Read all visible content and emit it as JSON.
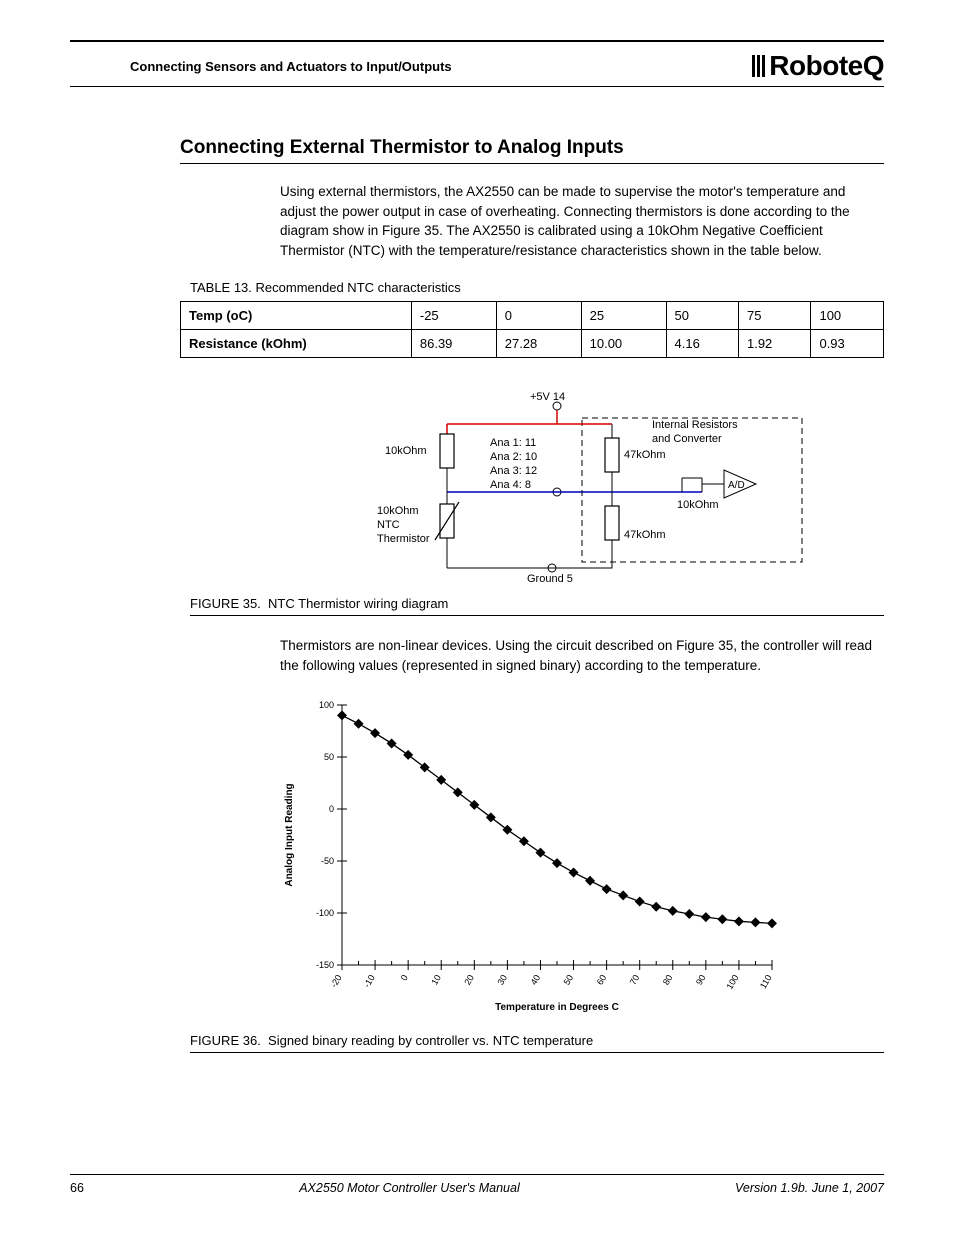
{
  "header": {
    "left_text": "Connecting Sensors and Actuators to Input/Outputs",
    "logo_text": "RoboteQ"
  },
  "section": {
    "title": "Connecting External Thermistor to Analog Inputs",
    "paragraph1": "Using external thermistors, the AX2550 can be made to supervise the motor's temperature and adjust the power output in case of overheating. Connecting thermistors is done according to the diagram show in Figure 35. The AX2550 is calibrated using a 10kOhm Negative Coefficient Thermistor (NTC) with the temperature/resistance characteristics shown in the table below.",
    "paragraph2": "Thermistors are non-linear devices. Using the circuit described on Figure 35, the controller will read the following values (represented in signed binary) according to the temperature."
  },
  "table13": {
    "caption_label": "TABLE 13.",
    "caption_text": "Recommended NTC characteristics",
    "row1_header": "Temp (oC)",
    "row1": [
      "-25",
      "0",
      "25",
      "50",
      "75",
      "100"
    ],
    "row2_header": "Resistance (kOhm)",
    "row2": [
      "86.39",
      "27.28",
      "10.00",
      "4.16",
      "1.92",
      "0.93"
    ]
  },
  "figure35": {
    "caption_label": "FIGURE 35.",
    "caption_text": "NTC Thermistor wiring diagram",
    "labels": {
      "top_supply": "+5V  14",
      "ana1": "Ana 1:  11",
      "ana2": "Ana 2:  10",
      "ana3": "Ana 3:  12",
      "ana4": "Ana 4:    8",
      "ground": "Ground  5",
      "r_top": "10kOhm",
      "thermistor1": "10kOhm",
      "thermistor2": "NTC",
      "thermistor3": "Thermistor",
      "r47a": "47kOhm",
      "r47b": "47kOhm",
      "r10div": "10kOhm",
      "ad": "A/D",
      "internal1": "Internal Resistors",
      "internal2": "and Converter"
    },
    "colors": {
      "supply_wire": "#d40000",
      "signal_wire": "#0000c0",
      "ground_wire": "#000000",
      "resistor": "#000000",
      "text": "#000000"
    }
  },
  "figure36": {
    "caption_label": "FIGURE 36.",
    "caption_text": "Signed binary reading by controller vs. NTC temperature",
    "xlabel": "Temperature in Degrees C",
    "ylabel": "Analog Input Reading",
    "x_ticks": [
      "-20",
      "-10",
      "0",
      "10",
      "20",
      "30",
      "40",
      "50",
      "60",
      "70",
      "80",
      "90",
      "100",
      "110"
    ],
    "y_ticks": [
      "-150",
      "-100",
      "-50",
      "0",
      "50",
      "100"
    ],
    "ylim": [
      -150,
      100
    ],
    "xlim": [
      -20,
      110
    ],
    "x_tick_vals": [
      -20,
      -10,
      0,
      10,
      20,
      30,
      40,
      50,
      60,
      70,
      80,
      90,
      100,
      110
    ],
    "y_tick_vals": [
      -150,
      -100,
      -50,
      0,
      50,
      100
    ],
    "series": {
      "color": "#000000",
      "marker": "diamond",
      "marker_size": 5,
      "points": [
        [
          -20,
          90
        ],
        [
          -15,
          82
        ],
        [
          -10,
          73
        ],
        [
          -5,
          63
        ],
        [
          0,
          52
        ],
        [
          5,
          40
        ],
        [
          10,
          28
        ],
        [
          15,
          16
        ],
        [
          20,
          4
        ],
        [
          25,
          -8
        ],
        [
          30,
          -20
        ],
        [
          35,
          -31
        ],
        [
          40,
          -42
        ],
        [
          45,
          -52
        ],
        [
          50,
          -61
        ],
        [
          55,
          -69
        ],
        [
          60,
          -77
        ],
        [
          65,
          -83
        ],
        [
          70,
          -89
        ],
        [
          75,
          -94
        ],
        [
          80,
          -98
        ],
        [
          85,
          -101
        ],
        [
          90,
          -104
        ],
        [
          95,
          -106
        ],
        [
          100,
          -108
        ],
        [
          105,
          -109
        ],
        [
          110,
          -110
        ]
      ]
    },
    "axis_color": "#000000",
    "tick_font_size": 9,
    "label_font_size": 10,
    "ylabel_font_size": 10
  },
  "footer": {
    "page": "66",
    "center": "AX2550 Motor Controller User's Manual",
    "right": "Version 1.9b. June 1, 2007"
  }
}
